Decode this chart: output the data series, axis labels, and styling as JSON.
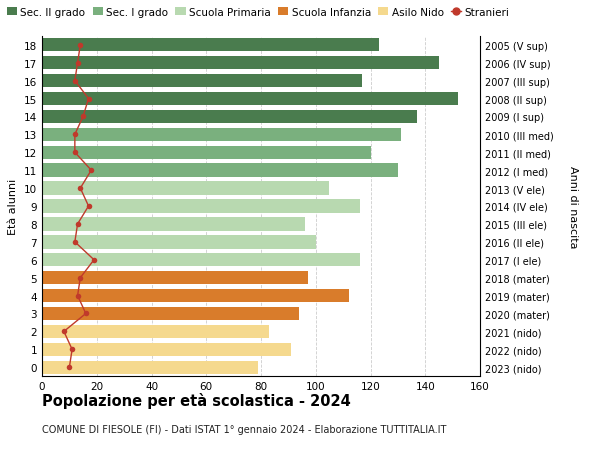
{
  "ages": [
    18,
    17,
    16,
    15,
    14,
    13,
    12,
    11,
    10,
    9,
    8,
    7,
    6,
    5,
    4,
    3,
    2,
    1,
    0
  ],
  "bar_values": [
    123,
    145,
    117,
    152,
    137,
    131,
    120,
    130,
    105,
    116,
    96,
    100,
    116,
    97,
    112,
    94,
    83,
    91,
    79
  ],
  "bar_colors": [
    "#4a7c4e",
    "#4a7c4e",
    "#4a7c4e",
    "#4a7c4e",
    "#4a7c4e",
    "#7ab07e",
    "#7ab07e",
    "#7ab07e",
    "#b8d9b0",
    "#b8d9b0",
    "#b8d9b0",
    "#b8d9b0",
    "#b8d9b0",
    "#d97c2b",
    "#d97c2b",
    "#d97c2b",
    "#f5d98e",
    "#f5d98e",
    "#f5d98e"
  ],
  "right_labels": [
    "2005 (V sup)",
    "2006 (IV sup)",
    "2007 (III sup)",
    "2008 (II sup)",
    "2009 (I sup)",
    "2010 (III med)",
    "2011 (II med)",
    "2012 (I med)",
    "2013 (V ele)",
    "2014 (IV ele)",
    "2015 (III ele)",
    "2016 (II ele)",
    "2017 (I ele)",
    "2018 (mater)",
    "2019 (mater)",
    "2020 (mater)",
    "2021 (nido)",
    "2022 (nido)",
    "2023 (nido)"
  ],
  "stranieri_values": [
    14,
    13,
    12,
    17,
    15,
    12,
    12,
    18,
    14,
    17,
    13,
    12,
    19,
    14,
    13,
    16,
    8,
    11,
    10
  ],
  "legend_labels": [
    "Sec. II grado",
    "Sec. I grado",
    "Scuola Primaria",
    "Scuola Infanzia",
    "Asilo Nido",
    "Stranieri"
  ],
  "legend_colors": [
    "#4a7c4e",
    "#7ab07e",
    "#b8d9b0",
    "#d97c2b",
    "#f5d98e",
    "#c0392b"
  ],
  "title": "Popolazione per età scolastica - 2024",
  "subtitle": "COMUNE DI FIESOLE (FI) - Dati ISTAT 1° gennaio 2024 - Elaborazione TUTTITALIA.IT",
  "ylabel": "Età alunni",
  "right_ylabel": "Anni di nascita",
  "xlim": [
    0,
    160
  ],
  "xticks": [
    0,
    20,
    40,
    60,
    80,
    100,
    120,
    140,
    160
  ],
  "background_color": "#ffffff",
  "grid_color": "#cccccc"
}
